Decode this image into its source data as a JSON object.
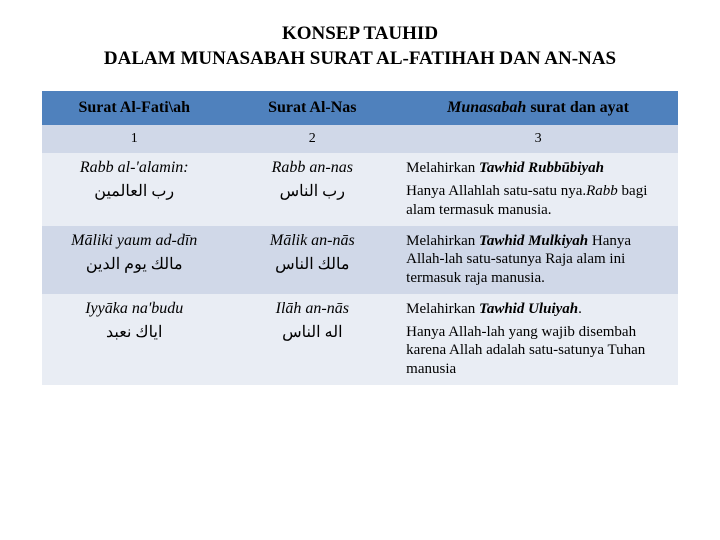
{
  "title_line1": "KONSEP TAUHID",
  "title_line2": "DALAM MUNASABAH SURAT AL-FATIHAH DAN AN-NAS",
  "colors": {
    "header_bg": "#4f81bd",
    "band_even": "#d0d8e8",
    "band_odd": "#e9edf4",
    "text": "#000000"
  },
  "columns": [
    {
      "label_plain": "Surat Al-Fati\\ah",
      "num": "1"
    },
    {
      "label_plain": "Surat Al-Nas",
      "num": "2"
    },
    {
      "label_html_prefix_italic": "Munasabah",
      "label_rest": " surat dan ayat",
      "num": "3"
    }
  ],
  "rows": [
    {
      "c1_latin": "Rabb al-'alamin:",
      "c1_arabic": "رب العالمين",
      "c2_latin": "Rabb an-nas",
      "c2_arabic": "رب الناس",
      "c3_lead_pre": "Melahirkan ",
      "c3_lead_bold": "Tawhid Rubbūbiyah",
      "c3_rest_pre": "Hanya Allahlah satu-satu nya.",
      "c3_rest_italic": "Rabb",
      "c3_rest_post": " bagi alam termasuk manusia."
    },
    {
      "c1_latin": "Māliki yaum ad-dīn",
      "c1_arabic": "مالك يوم الدين",
      "c2_latin": "Mālik an-nās",
      "c2_arabic": "مالك الناس",
      "c3_lead_pre": "Melahirkan ",
      "c3_lead_bold": "Tawhid Mulkiyah",
      "c3_inline_rest": " Hanya Allah-lah satu-satunya Raja alam ini termasuk raja manusia."
    },
    {
      "c1_latin": "Iyyāka na'budu",
      "c1_arabic": "اياك نعبد",
      "c2_latin": "Ilāh an-nās",
      "c2_arabic": "اله الناس",
      "c3_lead_pre": "Melahirkan ",
      "c3_lead_bold": "Tawhid Uluiyah",
      "c3_lead_post": ".",
      "c3_rest_plain": "Hanya Allah-lah yang wajib disembah karena Allah adalah satu-satunya Tuhan manusia"
    }
  ]
}
